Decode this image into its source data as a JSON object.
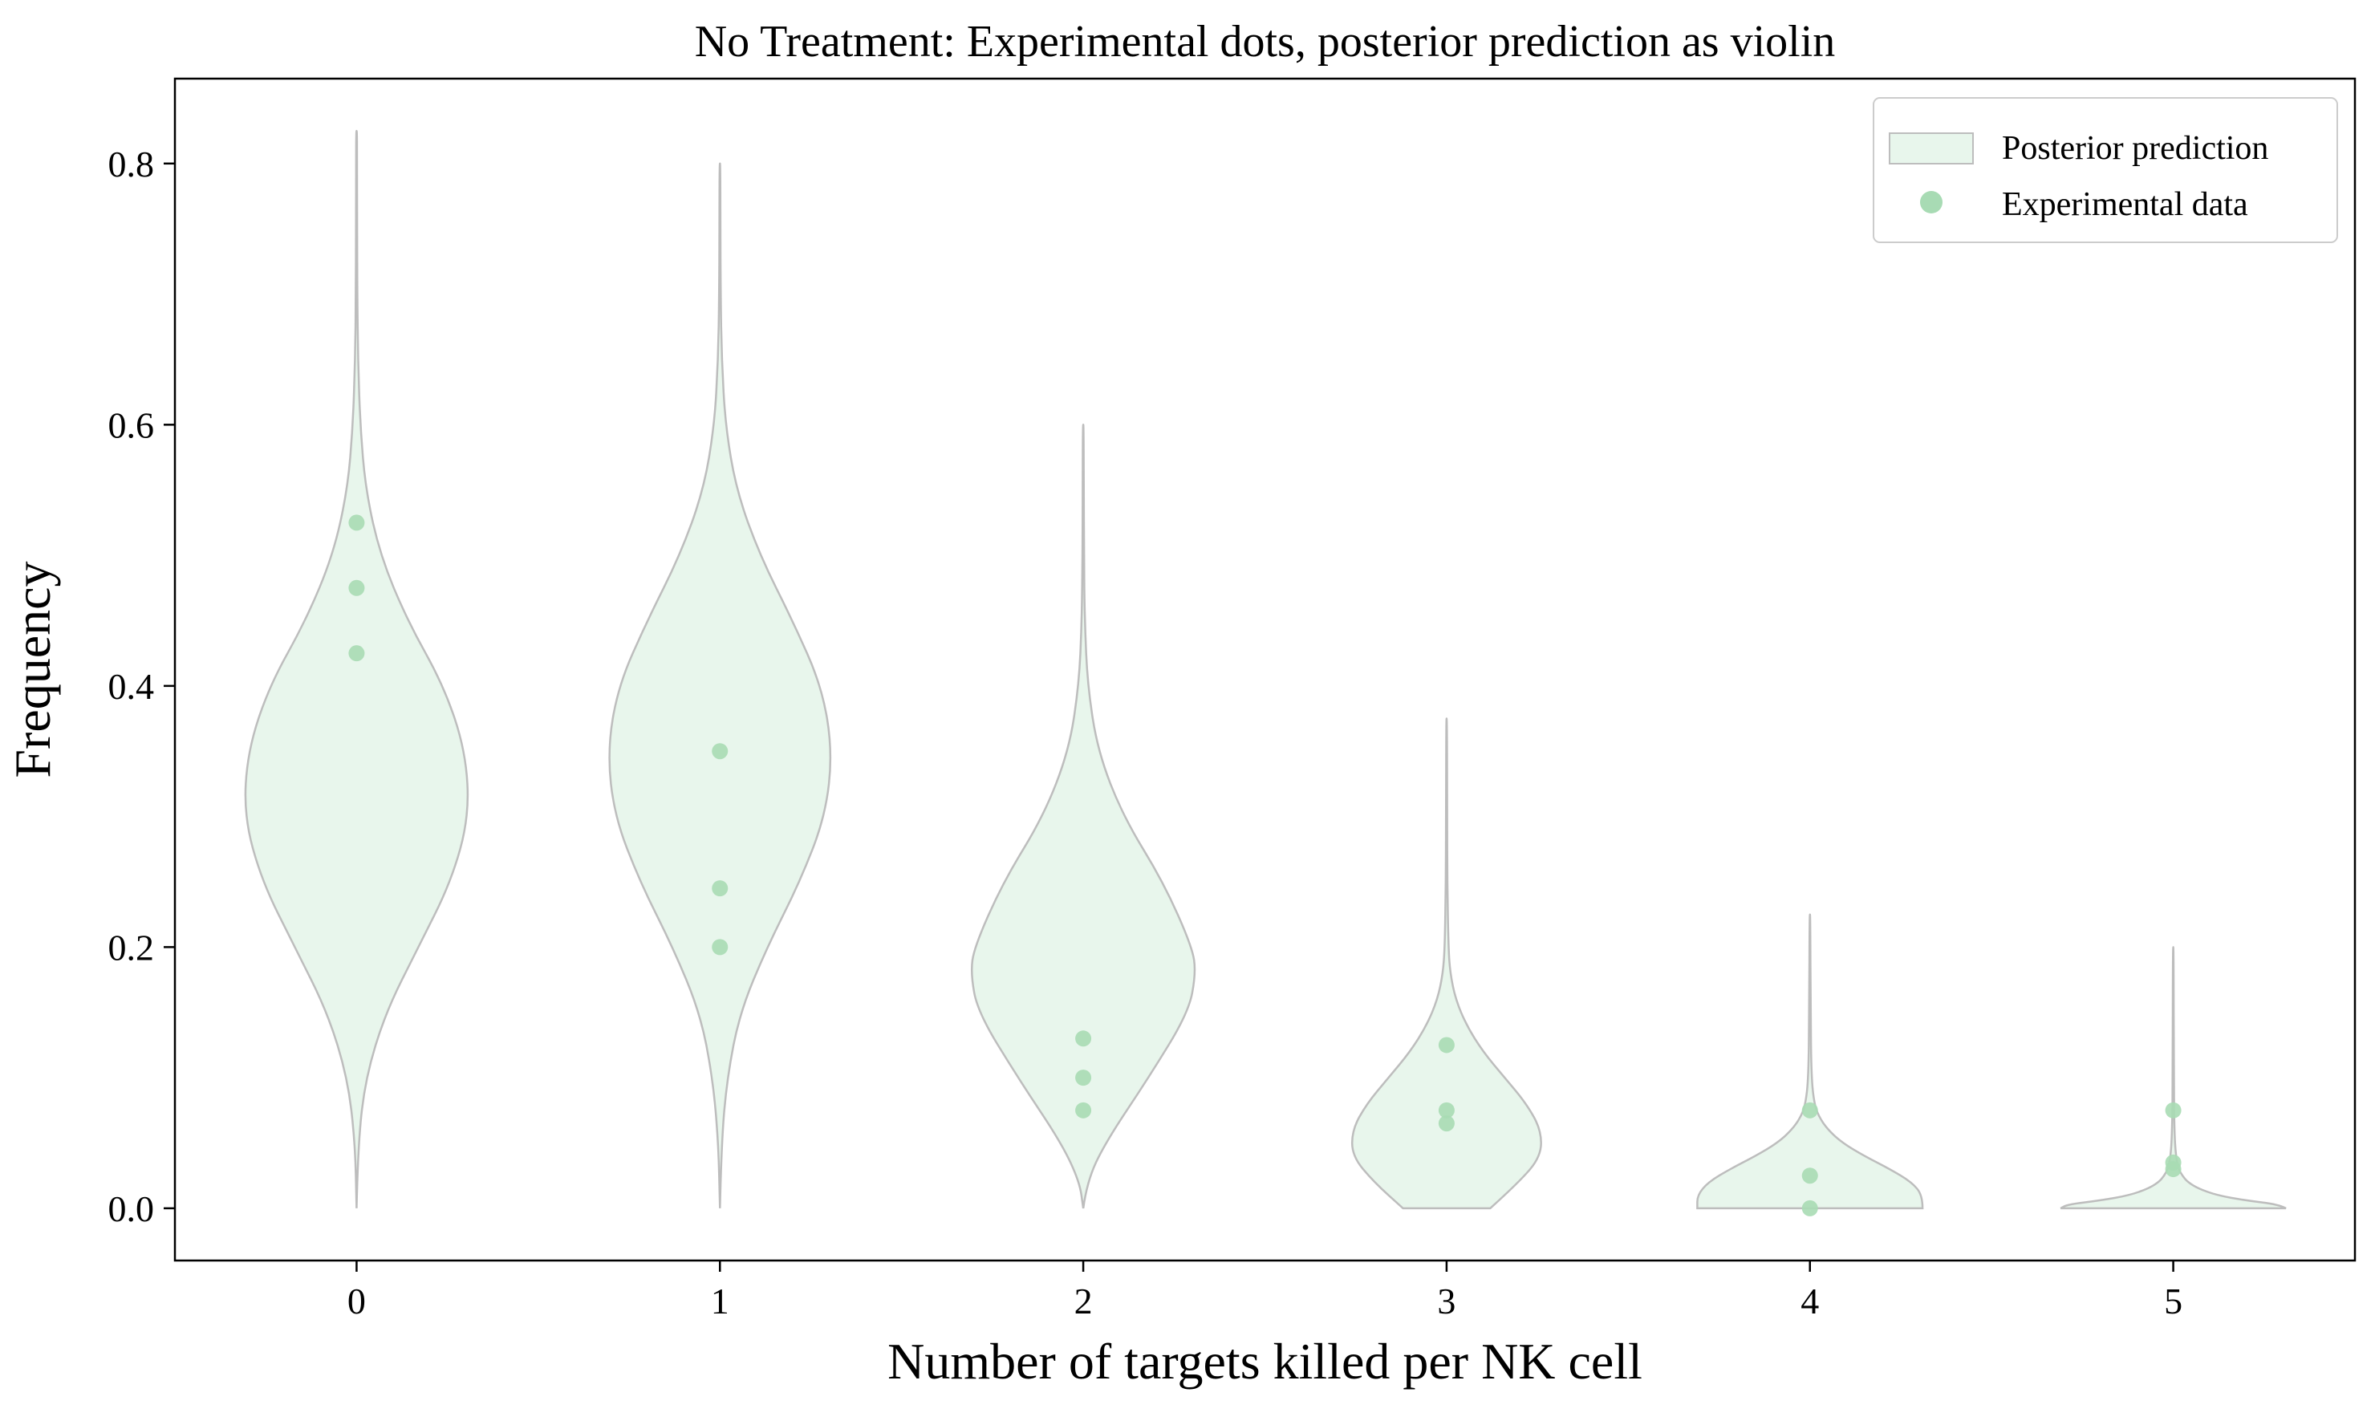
{
  "chart_data": {
    "type": "violin",
    "title": "No Treatment: Experimental dots, posterior prediction as violin",
    "xlabel": "Number of targets killed per NK cell",
    "ylabel": "Frequency",
    "xlim": [
      -0.5,
      5.5
    ],
    "ylim": [
      -0.04,
      0.865
    ],
    "x_ticks": [
      "0",
      "1",
      "2",
      "3",
      "4",
      "5"
    ],
    "y_ticks": [
      "0.0",
      "0.2",
      "0.4",
      "0.6",
      "0.8"
    ],
    "legend": {
      "placement": "top-right",
      "entries": [
        "Posterior prediction",
        "Experimental data"
      ]
    },
    "colors": {
      "violin_fill": "#e8f6ec",
      "violin_edge": "#bdbdbd",
      "dot": "#a8dbb4"
    },
    "violins": [
      {
        "x": 0,
        "min": 0.0,
        "max": 0.825,
        "profile": [
          [
            0.0,
            0.0
          ],
          [
            0.05,
            0.004
          ],
          [
            0.1,
            0.025
          ],
          [
            0.15,
            0.08
          ],
          [
            0.2,
            0.17
          ],
          [
            0.25,
            0.26
          ],
          [
            0.3,
            0.31
          ],
          [
            0.35,
            0.3
          ],
          [
            0.4,
            0.24
          ],
          [
            0.45,
            0.14
          ],
          [
            0.5,
            0.065
          ],
          [
            0.55,
            0.025
          ],
          [
            0.6,
            0.01
          ],
          [
            0.65,
            0.004
          ],
          [
            0.7,
            0.002
          ],
          [
            0.75,
            0.0015
          ],
          [
            0.8,
            0.0012
          ],
          [
            0.825,
            0.001
          ]
        ]
      },
      {
        "x": 1,
        "min": 0.0,
        "max": 0.8,
        "profile": [
          [
            0.0,
            0.0
          ],
          [
            0.05,
            0.004
          ],
          [
            0.1,
            0.02
          ],
          [
            0.15,
            0.055
          ],
          [
            0.2,
            0.13
          ],
          [
            0.25,
            0.22
          ],
          [
            0.3,
            0.29
          ],
          [
            0.35,
            0.31
          ],
          [
            0.4,
            0.28
          ],
          [
            0.45,
            0.2
          ],
          [
            0.5,
            0.11
          ],
          [
            0.55,
            0.045
          ],
          [
            0.6,
            0.015
          ],
          [
            0.65,
            0.005
          ],
          [
            0.7,
            0.002
          ],
          [
            0.75,
            0.0015
          ],
          [
            0.8,
            0.001
          ]
        ]
      },
      {
        "x": 2,
        "min": 0.0,
        "max": 0.6,
        "profile": [
          [
            0.0,
            0.0
          ],
          [
            0.02,
            0.01
          ],
          [
            0.05,
            0.06
          ],
          [
            0.1,
            0.18
          ],
          [
            0.15,
            0.29
          ],
          [
            0.18,
            0.31
          ],
          [
            0.2,
            0.3
          ],
          [
            0.25,
            0.22
          ],
          [
            0.3,
            0.11
          ],
          [
            0.35,
            0.04
          ],
          [
            0.4,
            0.012
          ],
          [
            0.45,
            0.004
          ],
          [
            0.5,
            0.002
          ],
          [
            0.55,
            0.0015
          ],
          [
            0.6,
            0.001
          ]
        ]
      },
      {
        "x": 3,
        "min": 0.0,
        "max": 0.375,
        "profile": [
          [
            0.0,
            0.12
          ],
          [
            0.02,
            0.2
          ],
          [
            0.04,
            0.26
          ],
          [
            0.06,
            0.26
          ],
          [
            0.08,
            0.22
          ],
          [
            0.1,
            0.16
          ],
          [
            0.12,
            0.1
          ],
          [
            0.14,
            0.055
          ],
          [
            0.16,
            0.025
          ],
          [
            0.18,
            0.01
          ],
          [
            0.2,
            0.005
          ],
          [
            0.25,
            0.002
          ],
          [
            0.3,
            0.0015
          ],
          [
            0.375,
            0.001
          ]
        ]
      },
      {
        "x": 4,
        "min": 0.0,
        "max": 0.225,
        "profile": [
          [
            0.0,
            0.31
          ],
          [
            0.01,
            0.31
          ],
          [
            0.02,
            0.28
          ],
          [
            0.03,
            0.22
          ],
          [
            0.04,
            0.15
          ],
          [
            0.05,
            0.09
          ],
          [
            0.06,
            0.05
          ],
          [
            0.07,
            0.025
          ],
          [
            0.08,
            0.012
          ],
          [
            0.1,
            0.004
          ],
          [
            0.15,
            0.002
          ],
          [
            0.225,
            0.001
          ]
        ]
      },
      {
        "x": 5,
        "min": 0.0,
        "max": 0.2,
        "profile": [
          [
            0.0,
            0.31
          ],
          [
            0.003,
            0.29
          ],
          [
            0.006,
            0.2
          ],
          [
            0.01,
            0.12
          ],
          [
            0.015,
            0.07
          ],
          [
            0.02,
            0.04
          ],
          [
            0.025,
            0.025
          ],
          [
            0.03,
            0.015
          ],
          [
            0.04,
            0.007
          ],
          [
            0.06,
            0.003
          ],
          [
            0.1,
            0.0015
          ],
          [
            0.2,
            0.001
          ]
        ]
      }
    ],
    "points": [
      {
        "x": 0,
        "values": [
          0.525,
          0.475,
          0.425
        ]
      },
      {
        "x": 1,
        "values": [
          0.35,
          0.245,
          0.2
        ]
      },
      {
        "x": 2,
        "values": [
          0.13,
          0.1,
          0.075
        ]
      },
      {
        "x": 3,
        "values": [
          0.125,
          0.075,
          0.065
        ]
      },
      {
        "x": 4,
        "values": [
          0.075,
          0.025,
          0.0
        ]
      },
      {
        "x": 5,
        "values": [
          0.075,
          0.035,
          0.03
        ]
      }
    ]
  }
}
